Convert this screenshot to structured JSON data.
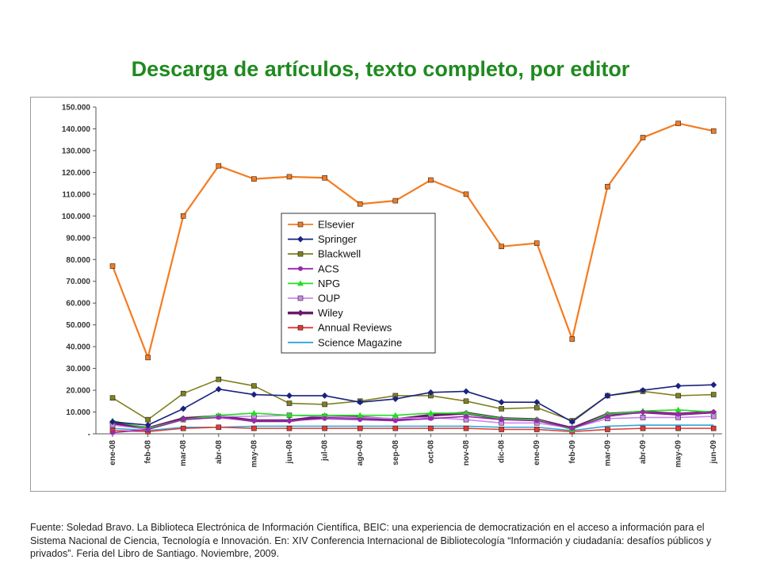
{
  "title": "Descarga de artículos, texto completo, por editor",
  "source": "Fuente: Soledad Bravo. La Biblioteca Electrónica de Información Científica, BEIC: una experiencia de democratización en el acceso a información para el Sistema Nacional de Ciencia, Tecnología e Innovación. En: XIV Conferencia Internacional de Bibliotecología “Información y ciudadanía: desafíos públicos y privados”. Feria del Libro de Santiago. Noviembre, 2009.",
  "chart_data": {
    "type": "line",
    "title": "",
    "xlabel": "",
    "ylabel": "",
    "ylim": [
      0,
      150000
    ],
    "yticks": [
      0,
      10000,
      20000,
      30000,
      40000,
      50000,
      60000,
      70000,
      80000,
      90000,
      100000,
      110000,
      120000,
      130000,
      140000,
      150000
    ],
    "ytick_labels": [
      "-",
      "10.000",
      "20.000",
      "30.000",
      "40.000",
      "50.000",
      "60.000",
      "70.000",
      "80.000",
      "90.000",
      "100.000",
      "110.000",
      "120.000",
      "130.000",
      "140.000",
      "150.000"
    ],
    "grid": "horizontal",
    "legend_position": "center",
    "categories": [
      "ene-08",
      "feb-08",
      "mar-08",
      "abr-08",
      "may-08",
      "jun-08",
      "jul-08",
      "ago-08",
      "sep-08",
      "oct-08",
      "nov-08",
      "dic-08",
      "ene-09",
      "feb-09",
      "mar-09",
      "abr-09",
      "may-09",
      "jun-09"
    ],
    "series": [
      {
        "name": "Elsevier",
        "color": "#f47b20",
        "marker": "square",
        "values": [
          77000,
          35000,
          100000,
          123000,
          117000,
          118000,
          117500,
          105500,
          107000,
          116500,
          110000,
          86000,
          87500,
          43500,
          113500,
          136000,
          142500,
          139000
        ]
      },
      {
        "name": "Springer",
        "color": "#1a237e",
        "marker": "diamond",
        "values": [
          5500,
          4000,
          11500,
          20500,
          18000,
          17500,
          17500,
          14500,
          16000,
          19000,
          19500,
          14500,
          14500,
          5500,
          17500,
          20000,
          22000,
          22500
        ]
      },
      {
        "name": "Blackwell",
        "color": "#808020",
        "marker": "square",
        "values": [
          16500,
          6500,
          18500,
          25000,
          22000,
          14000,
          13500,
          15000,
          17500,
          17500,
          15000,
          11500,
          12000,
          6000,
          17500,
          19500,
          17500,
          18000
        ]
      },
      {
        "name": "ACS",
        "color": "#9c27b0",
        "marker": "circle",
        "values": [
          500,
          2000,
          6500,
          7500,
          6000,
          6000,
          7000,
          6500,
          6000,
          7000,
          8000,
          6500,
          6000,
          2500,
          8000,
          10000,
          9000,
          10000
        ]
      },
      {
        "name": "NPG",
        "color": "#22dd22",
        "marker": "triangle",
        "values": [
          6000,
          2500,
          6500,
          8500,
          9500,
          8500,
          8500,
          8500,
          8500,
          9500,
          9500,
          7000,
          6500,
          2000,
          9000,
          10500,
          11000,
          10000
        ]
      },
      {
        "name": "OUP",
        "color": "#cc88ee",
        "marker": "square",
        "values": [
          4000,
          2000,
          6500,
          8000,
          8000,
          8500,
          8000,
          7500,
          7000,
          7500,
          6500,
          5000,
          5000,
          2500,
          7000,
          7500,
          7500,
          8000
        ]
      },
      {
        "name": "Wiley",
        "color": "#6a1b6a",
        "marker": "diamond",
        "values": [
          5000,
          2500,
          7000,
          8000,
          6000,
          6000,
          8000,
          7500,
          6500,
          8500,
          9500,
          7000,
          6500,
          2500,
          9000,
          10000,
          9000,
          10000
        ]
      },
      {
        "name": "Annual Reviews",
        "color": "#e53935",
        "marker": "square",
        "values": [
          1500,
          1000,
          2500,
          3000,
          2500,
          2500,
          2500,
          2500,
          2500,
          2500,
          2500,
          2000,
          2000,
          1000,
          2000,
          2500,
          2500,
          2500
        ]
      },
      {
        "name": "Science Magazine",
        "color": "#29a8d8",
        "marker": "none",
        "values": [
          2500,
          1500,
          3000,
          3000,
          3500,
          3500,
          3500,
          3500,
          3500,
          3500,
          3500,
          3000,
          3000,
          1500,
          3500,
          4000,
          4000,
          4000
        ]
      }
    ]
  }
}
